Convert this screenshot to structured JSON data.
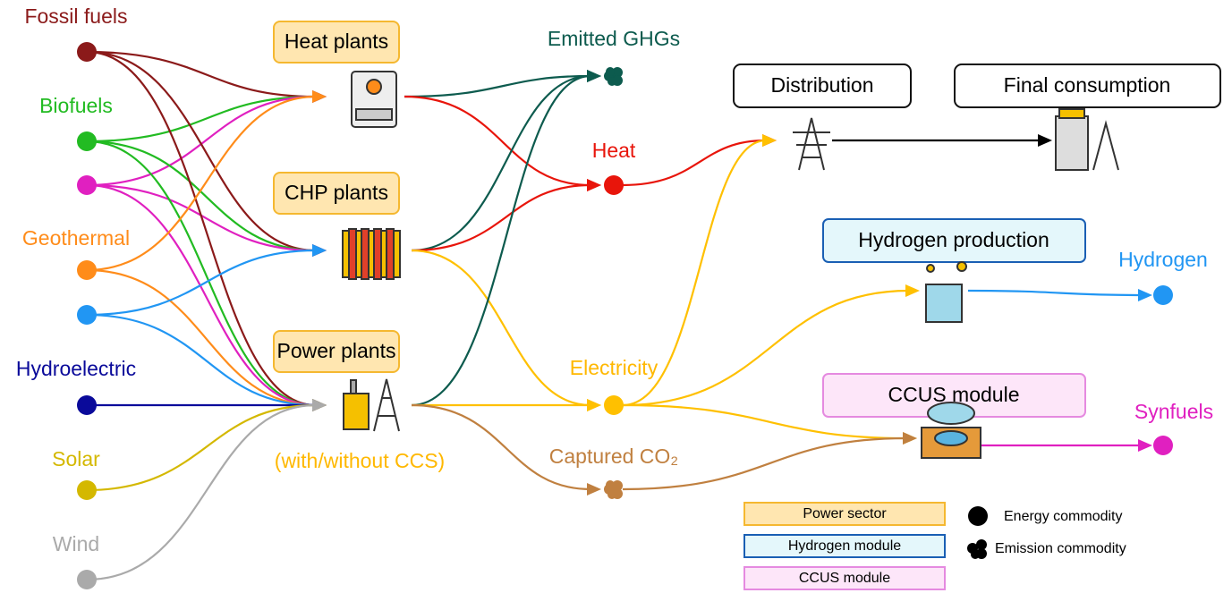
{
  "sources": [
    "Fossil fuels",
    "Biofuels",
    "Geothermal",
    "Hydroelectric",
    "Solar",
    "Wind"
  ],
  "plants": {
    "heat": "Heat plants",
    "chp": "CHP plants",
    "power": "Power plants",
    "power_note": "(with/without CCS)"
  },
  "commodities": {
    "ghg": "Emitted GHGs",
    "heat": "Heat",
    "electricity": "Electricity",
    "co2": "Captured CO₂",
    "hydrogen": "Hydrogen",
    "synfuels": "Synfuels"
  },
  "modules": {
    "distribution": "Distribution",
    "final": "Final consumption",
    "hydrogen_production": "Hydrogen production",
    "ccus": "CCUS module"
  },
  "legend": {
    "power_sector": "Power sector",
    "hydrogen_module": "Hydrogen module",
    "ccus_module": "CCUS module",
    "energy": "Energy commodity",
    "emission": "Emission commodity"
  }
}
